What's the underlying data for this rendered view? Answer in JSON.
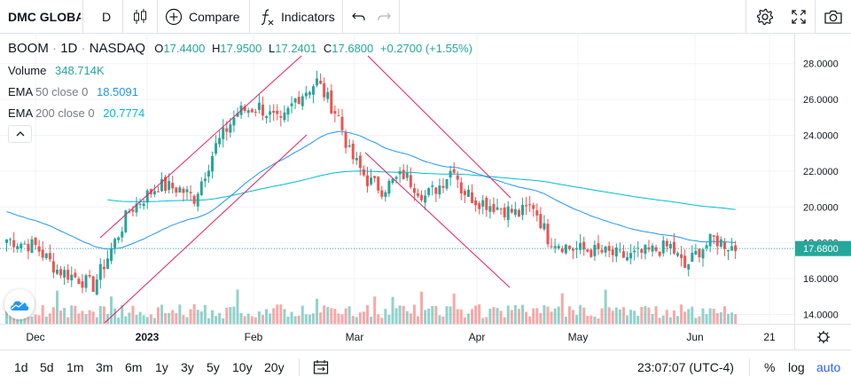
{
  "toolbar": {
    "symbol_search": "DMC GLOBAL",
    "interval": "D",
    "compare_label": "Compare",
    "indicators_label": "Indicators"
  },
  "legend": {
    "symbol": "BOOM",
    "interval": "1D",
    "exchange": "NASDAQ",
    "open_label": "O",
    "open": "17.4400",
    "high_label": "H",
    "high": "17.9500",
    "low_label": "L",
    "low": "17.2401",
    "close_label": "C",
    "close": "17.6800",
    "change": "+0.2700 (+1.55%)",
    "volume_label": "Volume",
    "volume_value": "348.714K",
    "ema50_label": "EMA",
    "ema50_params": "50 close 0",
    "ema50_value": "18.5091",
    "ema200_label": "EMA",
    "ema200_params": "200 close 0",
    "ema200_value": "20.7774"
  },
  "price_axis": {
    "ticks": [
      "28.0000",
      "26.0000",
      "24.0000",
      "22.0000",
      "20.0000",
      "18.0000",
      "16.0000",
      "14.0000"
    ],
    "last_price": "17.6800"
  },
  "time_axis": {
    "ticks": [
      "Dec",
      "2023",
      "Feb",
      "Mar",
      "Apr",
      "May",
      "Jun",
      "21"
    ]
  },
  "ranges": [
    "1d",
    "5d",
    "1m",
    "3m",
    "6m",
    "1y",
    "3y",
    "5y",
    "10y",
    "20y"
  ],
  "footer": {
    "clock": "23:07:07 (UTC-4)",
    "percent_label": "%",
    "log_label": "log",
    "auto_label": "auto"
  },
  "colors": {
    "up": "#26a69a",
    "down": "#ef5350",
    "ema50": "#2196f3",
    "ema200": "#00bcd4",
    "trendline": "#e91e63",
    "accent": "#2962ff"
  }
}
